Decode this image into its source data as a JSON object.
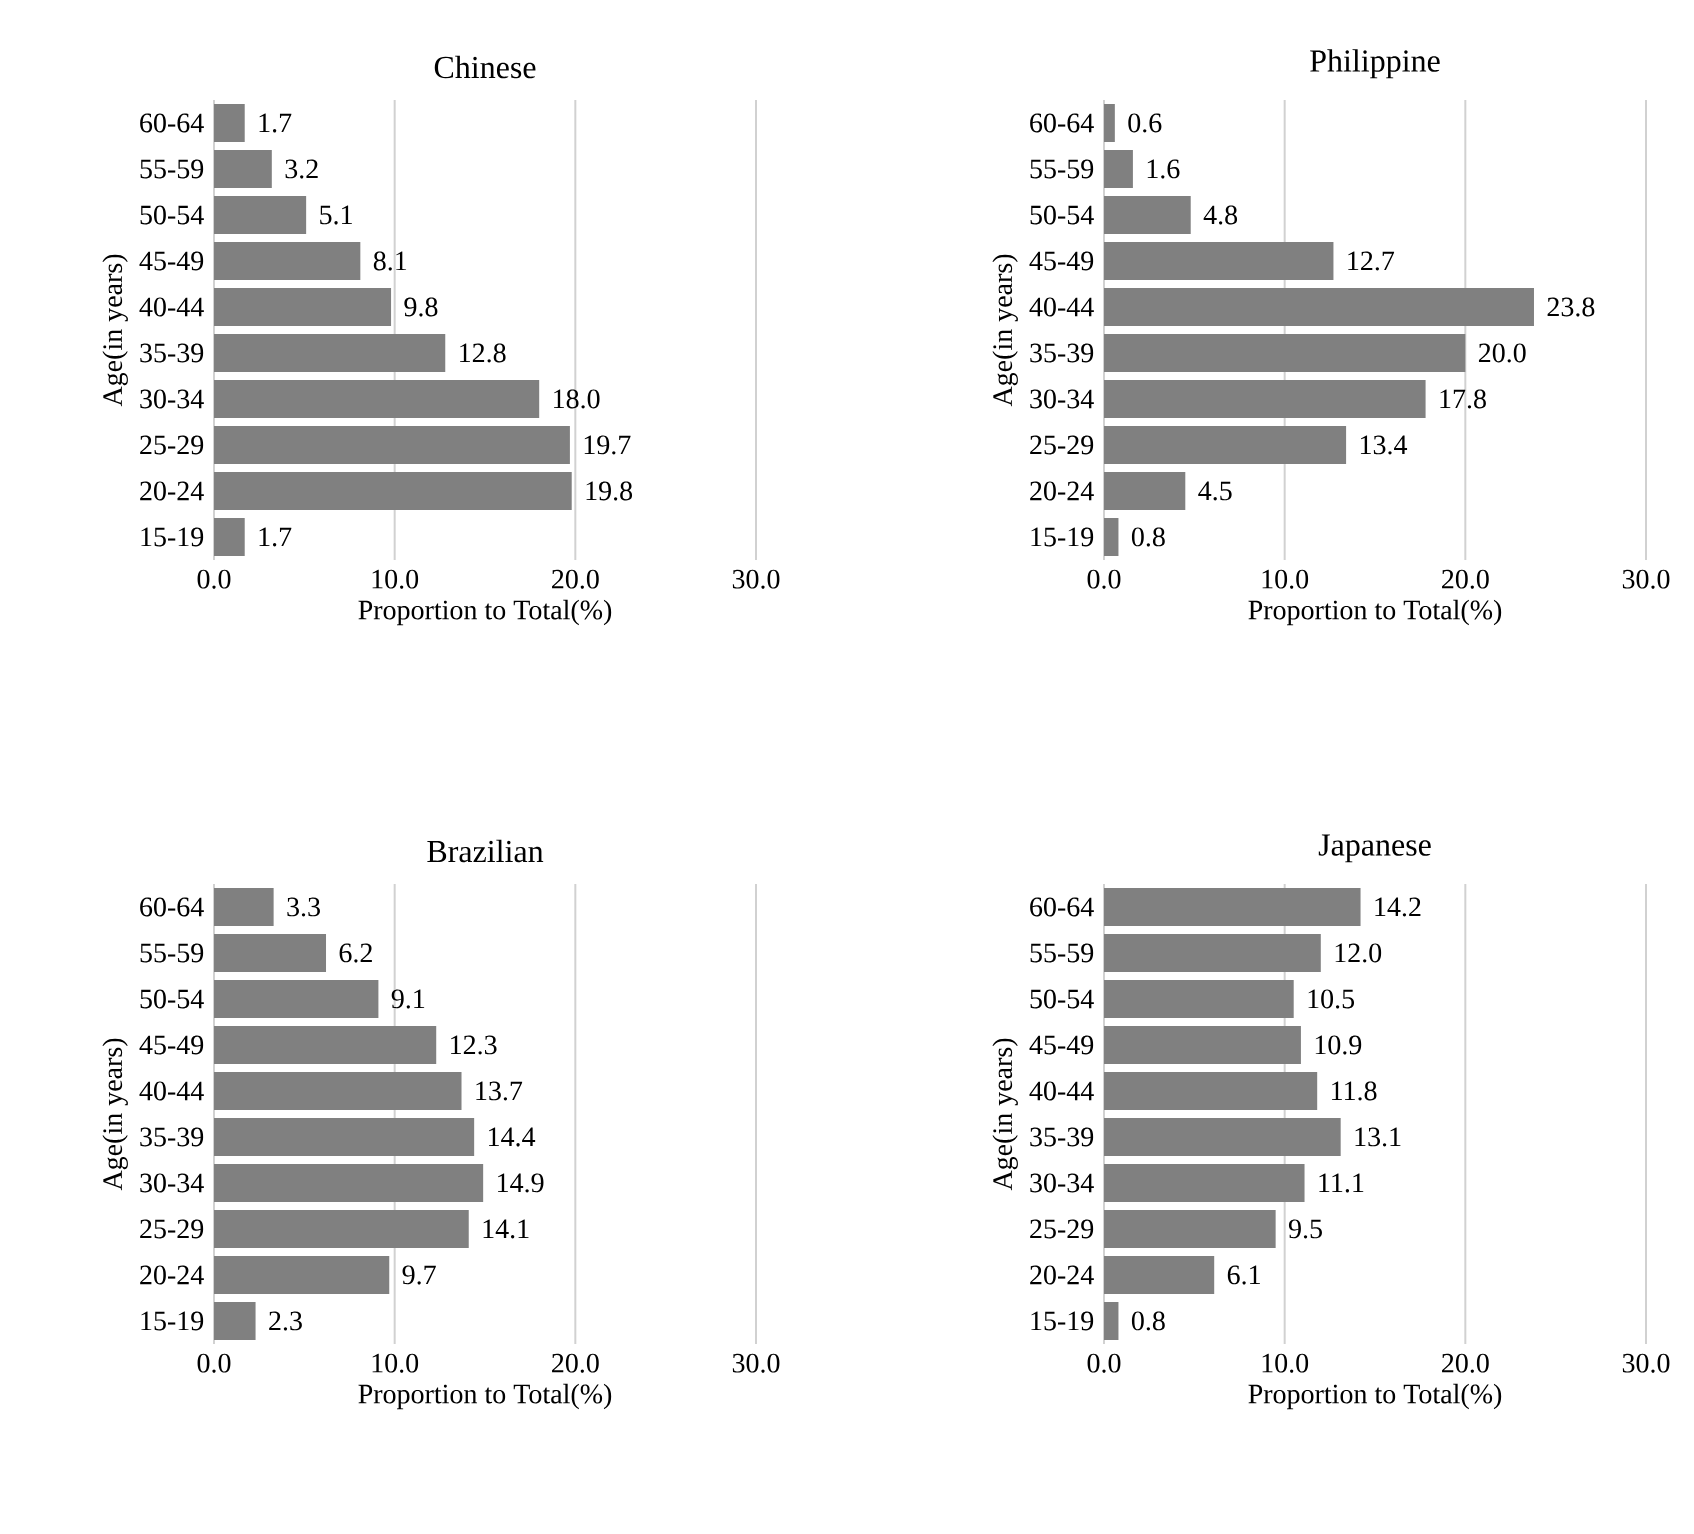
{
  "chart_data": [
    {
      "type": "bar",
      "orientation": "horizontal",
      "title": "Chinese",
      "xlabel": "Proportion to Total(%)",
      "ylabel": "Age(in years)",
      "categories": [
        "60-64",
        "55-59",
        "50-54",
        "45-49",
        "40-44",
        "35-39",
        "30-34",
        "25-29",
        "20-24",
        "15-19"
      ],
      "values": [
        1.7,
        3.2,
        5.1,
        8.1,
        9.8,
        12.8,
        18.0,
        19.7,
        19.8,
        1.7
      ],
      "value_labels": [
        "1.7",
        "3.2",
        "5.1",
        "8.1",
        "9.8",
        "12.8",
        "18.0",
        "19.7",
        "19.8",
        "1.7"
      ],
      "color": "#808080",
      "xlim": [
        0,
        30
      ],
      "xticks": [
        {
          "value": 0,
          "label": "0.0"
        },
        {
          "value": 10,
          "label": "10.0"
        },
        {
          "value": 20,
          "label": "20.0"
        },
        {
          "value": 30,
          "label": "30.0"
        }
      ],
      "grid": "x"
    },
    {
      "type": "bar",
      "orientation": "horizontal",
      "title": "Philippine",
      "xlabel": "Proportion to Total(%)",
      "ylabel": "Age(in years)",
      "categories": [
        "60-64",
        "55-59",
        "50-54",
        "45-49",
        "40-44",
        "35-39",
        "30-34",
        "25-29",
        "20-24",
        "15-19"
      ],
      "values": [
        0.6,
        1.6,
        4.8,
        12.7,
        23.8,
        20.0,
        17.8,
        13.4,
        4.5,
        0.8
      ],
      "value_labels": [
        "0.6",
        "1.6",
        "4.8",
        "12.7",
        "23.8",
        "20.0",
        "17.8",
        "13.4",
        "4.5",
        "0.8"
      ],
      "color": "#808080",
      "xlim": [
        0,
        30
      ],
      "xticks": [
        {
          "value": 0,
          "label": "0.0"
        },
        {
          "value": 10,
          "label": "10.0"
        },
        {
          "value": 20,
          "label": "20.0"
        },
        {
          "value": 30,
          "label": "30.0"
        }
      ],
      "grid": "x"
    },
    {
      "type": "bar",
      "orientation": "horizontal",
      "title": "Brazilian",
      "xlabel": "Proportion to Total(%)",
      "ylabel": "Age(in years)",
      "categories": [
        "60-64",
        "55-59",
        "50-54",
        "45-49",
        "40-44",
        "35-39",
        "30-34",
        "25-29",
        "20-24",
        "15-19"
      ],
      "values": [
        3.3,
        6.2,
        9.1,
        12.3,
        13.7,
        14.4,
        14.9,
        14.1,
        9.7,
        2.3
      ],
      "value_labels": [
        "3.3",
        "6.2",
        "9.1",
        "12.3",
        "13.7",
        "14.4",
        "14.9",
        "14.1",
        "9.7",
        "2.3"
      ],
      "color": "#808080",
      "xlim": [
        0,
        30
      ],
      "xticks": [
        {
          "value": 0,
          "label": "0.0"
        },
        {
          "value": 10,
          "label": "10.0"
        },
        {
          "value": 20,
          "label": "20.0"
        },
        {
          "value": 30,
          "label": "30.0"
        }
      ],
      "grid": "x"
    },
    {
      "type": "bar",
      "orientation": "horizontal",
      "title": "Japanese",
      "xlabel": "Proportion to Total(%)",
      "ylabel": "Age(in years)",
      "categories": [
        "60-64",
        "55-59",
        "50-54",
        "45-49",
        "40-44",
        "35-39",
        "30-34",
        "25-29",
        "20-24",
        "15-19"
      ],
      "values": [
        14.2,
        12.0,
        10.5,
        10.9,
        11.8,
        13.1,
        11.1,
        9.5,
        6.1,
        0.8
      ],
      "value_labels": [
        "14.2",
        "12.0",
        "10.5",
        "10.9",
        "11.8",
        "13.1",
        "11.1",
        "9.5",
        "6.1",
        "0.8"
      ],
      "color": "#808080",
      "xlim": [
        0,
        30
      ],
      "xticks": [
        {
          "value": 0,
          "label": "0.0"
        },
        {
          "value": 10,
          "label": "10.0"
        },
        {
          "value": 20,
          "label": "20.0"
        },
        {
          "value": 30,
          "label": "30.0"
        }
      ],
      "grid": "x"
    }
  ]
}
